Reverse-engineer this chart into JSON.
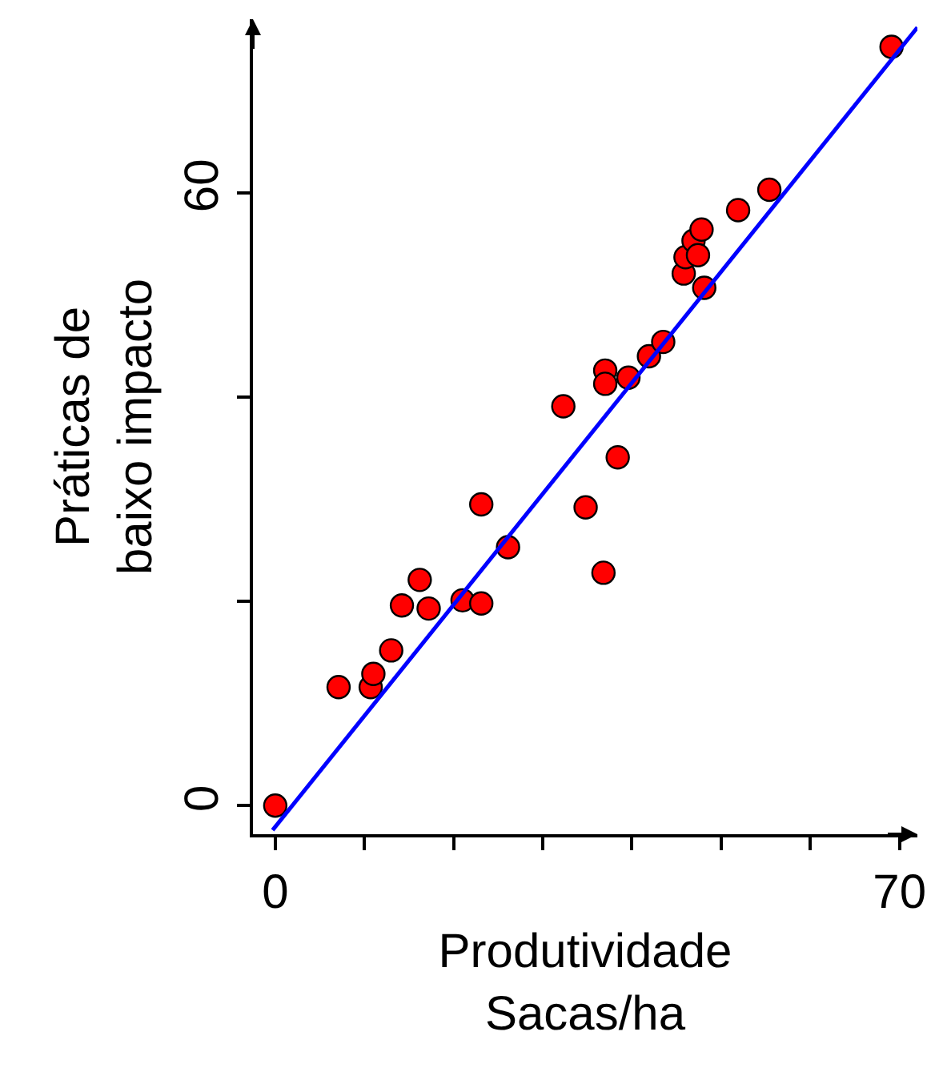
{
  "chart_data": {
    "type": "scatter",
    "xlabel": "Produtividade\nSacas/ha",
    "ylabel": "Práticas de\nbaixo impacto",
    "xlim": [
      -2.5,
      72
    ],
    "ylim": [
      -2.8,
      77
    ],
    "xticks": [
      0,
      {
        "value": 10,
        "label": null
      },
      {
        "value": 20,
        "label": null
      },
      {
        "value": 30,
        "label": null
      },
      {
        "value": 40,
        "label": null
      },
      {
        "value": 50,
        "label": null
      },
      {
        "value": 60,
        "label": null
      },
      70
    ],
    "yticks": [
      0,
      {
        "value": 20,
        "label": null
      },
      {
        "value": 40,
        "label": null
      },
      60
    ],
    "legend": false,
    "series": [
      {
        "marker": "circle",
        "color": "#ff0000",
        "x": [
          0,
          7.1,
          10.7,
          11.0,
          13.0,
          14.2,
          16.2,
          17.2,
          21.0,
          23.1,
          23.1,
          26.1,
          32.3,
          34.8,
          36.8,
          37.0,
          37.0,
          38.4,
          39.6,
          41.9,
          43.5,
          45.8,
          46.0,
          46.9,
          47.4,
          47.8,
          48.1,
          51.9,
          55.4,
          69.1
        ],
        "values": [
          0,
          11.6,
          11.6,
          12.9,
          15.2,
          19.6,
          22.1,
          19.3,
          20.1,
          19.8,
          29.5,
          25.3,
          39.1,
          29.2,
          22.8,
          42.6,
          41.3,
          34.1,
          41.9,
          44.0,
          45.4,
          52.1,
          53.7,
          55.3,
          53.9,
          56.4,
          50.7,
          58.3,
          60.3,
          74.3
        ]
      },
      {
        "type": "line",
        "marker": "none",
        "color": "#0000ff",
        "line_style": "solid",
        "x": [
          -0.3,
          72
        ],
        "values": [
          -2.4,
          76.2
        ]
      }
    ]
  }
}
